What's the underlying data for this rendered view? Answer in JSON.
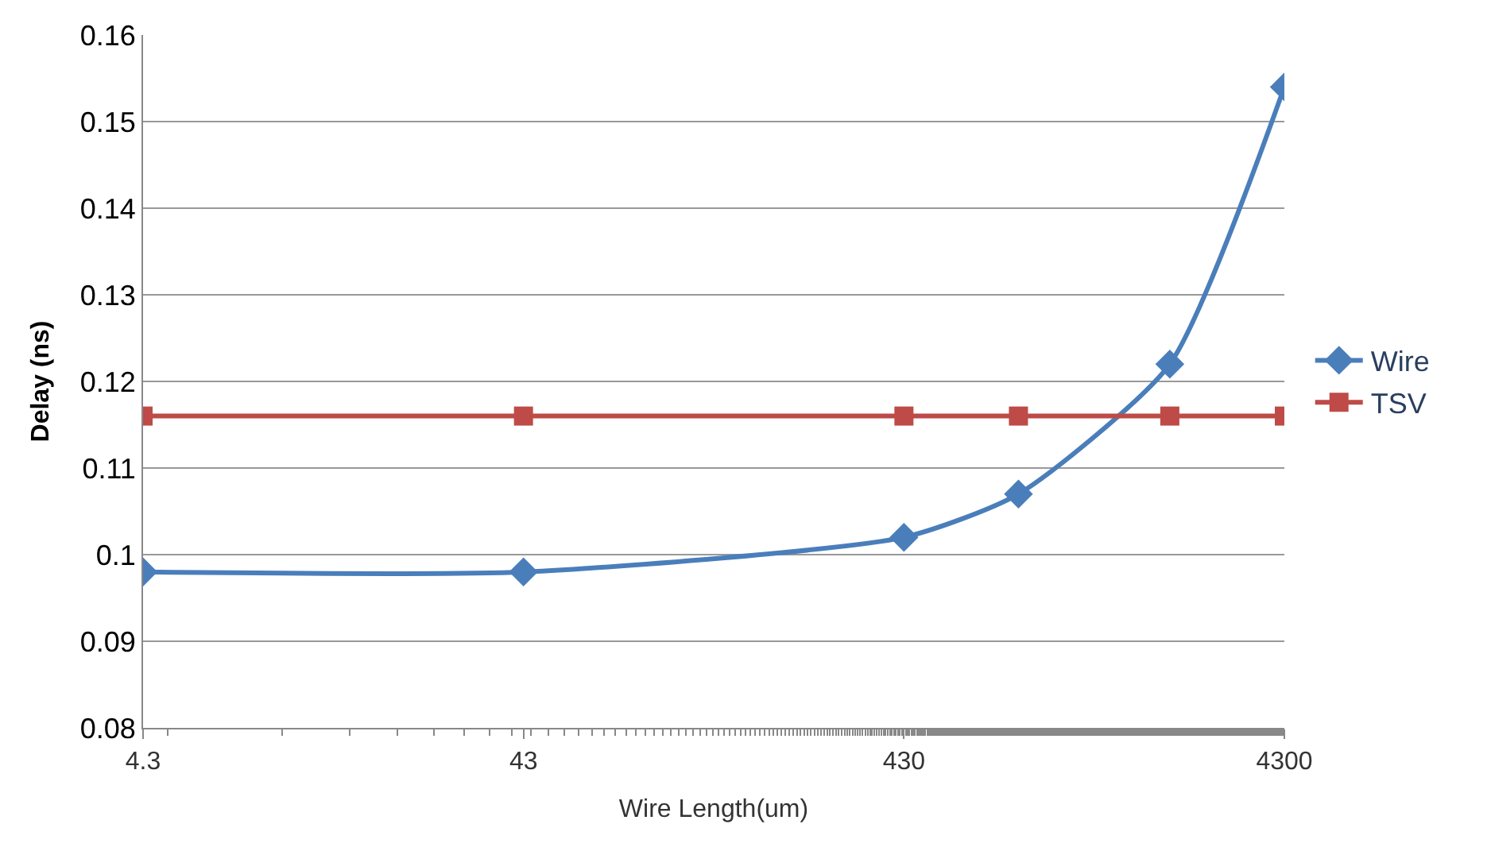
{
  "chart_data": {
    "type": "line",
    "xlabel": "Wire Length(um)",
    "ylabel": "Delay (ns)",
    "log": "x",
    "x": [
      4.3,
      43,
      430,
      860,
      2150,
      4300
    ],
    "series": [
      {
        "name": "Wire",
        "color": "#4a7ebb",
        "values": [
          0.098,
          0.098,
          0.102,
          0.107,
          0.122,
          0.154
        ],
        "marker": "diamond"
      },
      {
        "name": "TSV",
        "color": "#be4b48",
        "values": [
          0.116,
          0.116,
          0.116,
          0.116,
          0.116,
          0.116
        ],
        "marker": "square"
      }
    ],
    "xlim": [
      4.3,
      4300
    ],
    "xticks": [
      4.3,
      43,
      430,
      4300
    ],
    "ylim": [
      0.08,
      0.16
    ],
    "yticks": [
      {
        "value": 0.08,
        "label": "0.08"
      },
      {
        "value": 0.09,
        "label": "0.09"
      },
      {
        "value": 0.1,
        "label": "0.1"
      },
      {
        "value": 0.11,
        "label": "0.11"
      },
      {
        "value": 0.12,
        "label": "0.12"
      },
      {
        "value": 0.13,
        "label": "0.13"
      },
      {
        "value": 0.14,
        "label": "0.14"
      },
      {
        "value": 0.15,
        "label": "0.15"
      },
      {
        "value": 0.16,
        "label": "0.16"
      }
    ],
    "grid": "y",
    "legend": "right",
    "line_style": "solid"
  }
}
